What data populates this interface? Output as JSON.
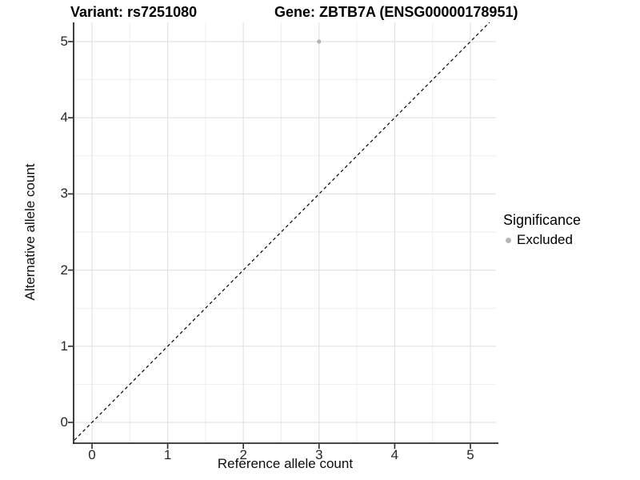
{
  "figure": {
    "title_left": "Variant: rs7251080",
    "title_right": "Gene: ZBTB7A (ENSG00000178951)"
  },
  "chart_data": {
    "type": "scatter",
    "title": "Variant: rs7251080          Gene: ZBTB7A (ENSG00000178951)",
    "xlabel": "Reference allele count",
    "ylabel": "Alternative allele count",
    "x_ticks": [
      0,
      1,
      2,
      3,
      4,
      5
    ],
    "y_ticks": [
      0,
      1,
      2,
      3,
      4,
      5
    ],
    "xlim": [
      -0.25,
      5.35
    ],
    "ylim": [
      -0.26,
      5.25
    ],
    "points": [
      {
        "x": 3,
        "y": 5,
        "series": "Excluded"
      }
    ],
    "identity_line": {
      "slope": 1,
      "intercept": 0,
      "style": "dashed",
      "color": "#000000"
    },
    "legend": {
      "title": "Significance",
      "position": "right",
      "items": [
        {
          "label": "Excluded",
          "color": "#b5b5b5",
          "marker": "circle"
        }
      ]
    },
    "layout_hints": {
      "grid": "major and minor gridlines on white panel",
      "axis_lines": "left and bottom only"
    },
    "colors": {
      "point": "#b5b5b5",
      "grid_major": "#e2e2e2",
      "grid_minor": "#eeeeee",
      "axis_line": "#2b2b2b",
      "text": "#1a1a1a"
    }
  }
}
